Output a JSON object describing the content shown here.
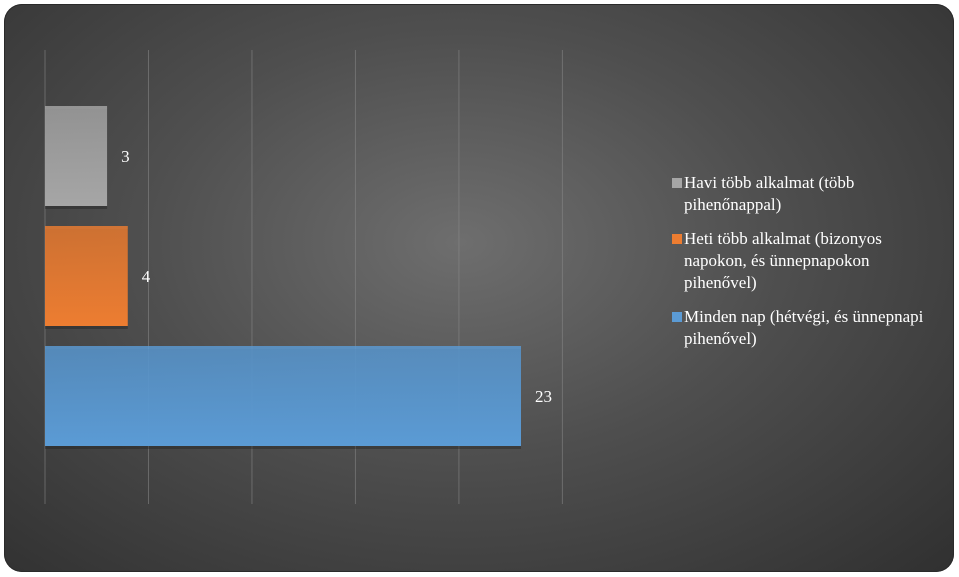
{
  "chart_data": {
    "type": "bar",
    "orientation": "horizontal",
    "categories": [
      "Havi több alkalmat (több pihenőnappal)",
      "Heti több alkalmat (bizonyos napokon, és ünnepnapokon pihenővel)",
      "Minden nap (hétvégi, és ünnepnapi pihenővel)"
    ],
    "values": [
      3,
      4,
      23
    ],
    "colors": [
      "#a6a6a6",
      "#ed7d31",
      "#5b9bd5"
    ],
    "data_labels": [
      "3",
      "4",
      "23"
    ],
    "xlim": [
      0,
      25
    ],
    "gridlines": true,
    "axis_tick_labels_shown": false,
    "legend_position": "right",
    "title": "",
    "xlabel": "",
    "ylabel": ""
  }
}
